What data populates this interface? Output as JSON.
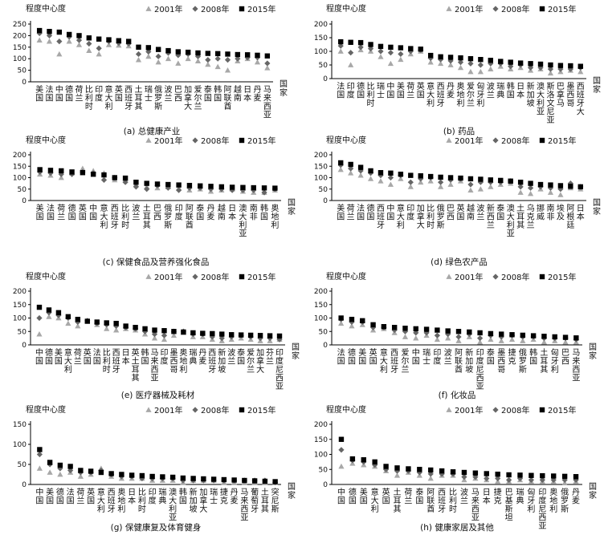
{
  "chart_data": [
    {
      "type": "scatter",
      "title": "(a) 总健康产业",
      "ylabel": "程度中心度",
      "xlabel": "国家",
      "ylim": [
        0,
        250
      ],
      "yticks": [
        0,
        50,
        100,
        150,
        200,
        250
      ],
      "legend": [
        "2001年",
        "2008年",
        "2015年"
      ],
      "categories": [
        "美国",
        "法国",
        "中国",
        "德国",
        "荷兰",
        "比利时",
        "印度",
        "意大利",
        "英国",
        "西班牙",
        "土耳其",
        "瑞士",
        "俄罗斯",
        "波兰",
        "巴西",
        "加拿大",
        "爱尔兰",
        "泰国",
        "韩国",
        "阿联酋",
        "越南",
        "日本",
        "丹麦",
        "马来西亚"
      ],
      "series": [
        {
          "name": "2001年",
          "values": [
            180,
            175,
            120,
            175,
            160,
            135,
            120,
            160,
            158,
            155,
            95,
            110,
            85,
            100,
            80,
            100,
            90,
            75,
            65,
            50,
            90,
            100,
            85,
            60
          ]
        },
        {
          "name": "2008年",
          "values": [
            210,
            200,
            175,
            195,
            180,
            165,
            145,
            175,
            168,
            165,
            120,
            130,
            110,
            125,
            115,
            120,
            110,
            95,
            100,
            95,
            100,
            105,
            105,
            80
          ]
        },
        {
          "name": "2015年",
          "values": [
            222,
            218,
            215,
            205,
            200,
            190,
            185,
            182,
            178,
            175,
            150,
            148,
            140,
            135,
            130,
            128,
            125,
            123,
            122,
            120,
            118,
            117,
            115,
            112
          ]
        }
      ]
    },
    {
      "type": "scatter",
      "title": "(b) 药品",
      "ylabel": "程度中心度",
      "xlabel": "国家",
      "ylim": [
        0,
        200
      ],
      "yticks": [
        0,
        50,
        100,
        150,
        200
      ],
      "legend": [
        "2001年",
        "2008年",
        "2015年"
      ],
      "categories": [
        "法国",
        "印度",
        "德国",
        "比利时",
        "瑞士",
        "中国",
        "美国",
        "荷兰",
        "英国",
        "意大利",
        "西班牙",
        "丹麦",
        "奥地利",
        "爱尔兰",
        "匈牙利",
        "波兰",
        "瑞典",
        "韩国",
        "日本",
        "新加坡",
        "澳大利亚",
        "斯洛文尼亚",
        "巴拿马",
        "墨西哥",
        "西班牙大"
      ],
      "series": [
        {
          "name": "2001年",
          "values": [
            100,
            50,
            105,
            100,
            80,
            55,
            70,
            90,
            100,
            60,
            55,
            50,
            40,
            25,
            25,
            35,
            45,
            35,
            40,
            30,
            35,
            20,
            25,
            30,
            25
          ]
        },
        {
          "name": "2008年",
          "values": [
            120,
            95,
            115,
            110,
            100,
            95,
            90,
            100,
            105,
            75,
            70,
            65,
            60,
            55,
            50,
            55,
            55,
            45,
            50,
            40,
            40,
            35,
            35,
            35,
            40
          ]
        },
        {
          "name": "2015年",
          "values": [
            135,
            133,
            132,
            125,
            118,
            115,
            113,
            110,
            108,
            85,
            80,
            78,
            76,
            73,
            70,
            67,
            63,
            60,
            57,
            55,
            53,
            50,
            48,
            47,
            45
          ]
        }
      ]
    },
    {
      "type": "scatter",
      "title": "(c) 保健食品及营养强化食品",
      "ylabel": "程度中心度",
      "xlabel": "国家",
      "ylim": [
        0,
        200
      ],
      "yticks": [
        0,
        50,
        100,
        150,
        200
      ],
      "legend": [
        "2001年",
        "2008年",
        "2015年"
      ],
      "categories": [
        "美国",
        "法国",
        "荷兰",
        "德国",
        "英国",
        "中国",
        "意大利",
        "西班牙",
        "比利时",
        "波兰",
        "土耳其",
        "巴西",
        "俄罗斯",
        "印度",
        "阿联酋",
        "泰国",
        "丹麦",
        "越南",
        "日本",
        "澳大利亚",
        "南非",
        "韩国",
        "奥地利"
      ],
      "series": [
        {
          "name": "2001年",
          "values": [
            115,
            110,
            100,
            120,
            140,
            130,
            120,
            90,
            95,
            70,
            60,
            55,
            60,
            55,
            45,
            50,
            40,
            45,
            50,
            40,
            35,
            35,
            45
          ]
        },
        {
          "name": "2008年",
          "values": [
            125,
            120,
            115,
            115,
            125,
            120,
            90,
            100,
            80,
            60,
            50,
            65,
            55,
            45,
            55,
            55,
            50,
            50,
            45,
            45,
            45,
            35,
            50
          ]
        },
        {
          "name": "2015年",
          "values": [
            135,
            132,
            130,
            125,
            122,
            115,
            112,
            100,
            98,
            80,
            75,
            72,
            70,
            68,
            66,
            64,
            62,
            60,
            58,
            57,
            56,
            55,
            54
          ]
        }
      ]
    },
    {
      "type": "scatter",
      "title": "(d) 绿色农产品",
      "ylabel": "程度中心度",
      "xlabel": "国家",
      "ylim": [
        0,
        200
      ],
      "yticks": [
        0,
        50,
        100,
        150,
        200
      ],
      "legend": [
        "2001年",
        "2008年",
        "2015年"
      ],
      "categories": [
        "美国",
        "荷兰",
        "法国",
        "德国",
        "西班牙",
        "中国",
        "意大利",
        "印度",
        "加拿大",
        "比利时",
        "俄罗斯",
        "巴西",
        "英国",
        "越南",
        "波兰",
        "新西兰",
        "泰国",
        "澳大利亚",
        "土耳其",
        "乌克兰",
        "挪威",
        "南非",
        "埃及",
        "阿根廷",
        "日本"
      ],
      "series": [
        {
          "name": "2001年",
          "values": [
            135,
            120,
            110,
            95,
            85,
            70,
            95,
            60,
            80,
            85,
            60,
            70,
            85,
            45,
            50,
            60,
            70,
            75,
            35,
            30,
            50,
            35,
            25,
            55,
            50
          ]
        },
        {
          "name": "2008年",
          "values": [
            155,
            140,
            130,
            120,
            110,
            100,
            110,
            80,
            95,
            100,
            80,
            90,
            95,
            70,
            80,
            80,
            80,
            85,
            60,
            55,
            60,
            55,
            50,
            75,
            60
          ]
        },
        {
          "name": "2015年",
          "values": [
            165,
            158,
            145,
            130,
            122,
            120,
            115,
            110,
            108,
            105,
            102,
            100,
            98,
            95,
            93,
            90,
            88,
            85,
            80,
            75,
            70,
            68,
            65,
            62,
            60
          ]
        }
      ]
    },
    {
      "type": "scatter",
      "title": "(e) 医疗器械及耗材",
      "ylabel": "程度中心度",
      "xlabel": "国家",
      "ylim": [
        0,
        200
      ],
      "yticks": [
        0,
        50,
        100,
        150,
        200
      ],
      "legend": [
        "2001年",
        "2008年",
        "2015年"
      ],
      "categories": [
        "中国",
        "德国",
        "美国",
        "意大利",
        "荷兰",
        "英国",
        "法国",
        "比利时",
        "西班牙",
        "日本",
        "英土耳其",
        "韩国",
        "马来西亚",
        "印度",
        "墨西哥",
        "奥地利",
        "瑞典",
        "丹麦",
        "西班牙",
        "新加坡",
        "波兰",
        "泰国",
        "爱尔兰",
        "加拿大",
        "芬兰",
        "印度尼西亚"
      ],
      "series": [
        {
          "name": "2001年",
          "values": [
            40,
            105,
            100,
            80,
            70,
            90,
            75,
            60,
            55,
            60,
            55,
            40,
            25,
            20,
            35,
            45,
            30,
            30,
            20,
            15,
            20,
            25,
            20,
            15,
            15,
            20
          ]
        },
        {
          "name": "2008年",
          "values": [
            100,
            120,
            110,
            100,
            85,
            90,
            80,
            75,
            70,
            65,
            60,
            50,
            40,
            35,
            50,
            50,
            40,
            40,
            30,
            25,
            30,
            35,
            30,
            25,
            25,
            20
          ]
        },
        {
          "name": "2015年",
          "values": [
            140,
            130,
            120,
            105,
            95,
            88,
            85,
            82,
            80,
            70,
            65,
            60,
            55,
            53,
            50,
            48,
            45,
            43,
            42,
            40,
            38,
            37,
            36,
            35,
            34,
            33
          ]
        }
      ]
    },
    {
      "type": "scatter",
      "title": "(f) 化妆品",
      "ylabel": "程度中心度",
      "xlabel": "国家",
      "ylim": [
        0,
        200
      ],
      "yticks": [
        0,
        50,
        100,
        150,
        200
      ],
      "legend": [
        "2001年",
        "2008年",
        "2015年"
      ],
      "categories": [
        "法国",
        "德国",
        "美国",
        "英国",
        "意大利",
        "西班牙",
        "爱尔兰",
        "中国",
        "瑞士",
        "印度",
        "波兰",
        "阿联酋",
        "新加坡",
        "印度尼西亚",
        "泰国",
        "墨西哥",
        "捷克",
        "俄罗斯",
        "韩国",
        "土耳其",
        "匈牙利",
        "巴西",
        "马来西亚"
      ],
      "series": [
        {
          "name": "2001年",
          "values": [
            80,
            70,
            75,
            55,
            60,
            45,
            30,
            25,
            35,
            20,
            25,
            15,
            30,
            10,
            20,
            15,
            20,
            15,
            20,
            10,
            15,
            10,
            10
          ]
        },
        {
          "name": "2008年",
          "values": [
            95,
            85,
            85,
            65,
            65,
            55,
            50,
            45,
            45,
            35,
            40,
            30,
            40,
            25,
            35,
            30,
            35,
            30,
            30,
            25,
            25,
            25,
            20
          ]
        },
        {
          "name": "2015年",
          "values": [
            100,
            95,
            90,
            75,
            68,
            65,
            62,
            60,
            58,
            55,
            52,
            50,
            48,
            45,
            42,
            40,
            38,
            36,
            34,
            32,
            30,
            28,
            26
          ]
        }
      ]
    },
    {
      "type": "scatter",
      "title": "(g) 保健康复及体育健身",
      "ylabel": "程度中心度",
      "xlabel": "国家",
      "ylim": [
        0,
        150
      ],
      "yticks": [
        0,
        50,
        100,
        150
      ],
      "legend": [
        "2001年",
        "2008年",
        "2015年"
      ],
      "categories": [
        "中国",
        "美国",
        "德国",
        "法国",
        "荷兰",
        "英国",
        "意大利",
        "西班牙",
        "奥地利",
        "日本",
        "比利时",
        "印度",
        "瑞典",
        "澳大利亚",
        "韩国",
        "新加坡",
        "加拿大",
        "瑞士",
        "捷克",
        "丹麦",
        "马来西亚",
        "葡萄牙",
        "土耳其",
        "突尼斯"
      ],
      "series": [
        {
          "name": "2001年",
          "values": [
            40,
            30,
            25,
            30,
            20,
            25,
            40,
            20,
            15,
            15,
            15,
            10,
            10,
            10,
            5,
            10,
            10,
            10,
            5,
            5,
            5,
            5,
            5,
            5
          ]
        },
        {
          "name": "2008年",
          "values": [
            75,
            50,
            40,
            35,
            30,
            30,
            35,
            25,
            20,
            20,
            15,
            15,
            15,
            15,
            10,
            10,
            10,
            10,
            10,
            10,
            10,
            10,
            10,
            5
          ]
        },
        {
          "name": "2015年",
          "values": [
            87,
            55,
            48,
            45,
            35,
            33,
            30,
            27,
            25,
            23,
            22,
            20,
            19,
            18,
            16,
            15,
            14,
            13,
            12,
            11,
            10,
            9,
            8,
            7
          ]
        }
      ]
    },
    {
      "type": "scatter",
      "title": "(h) 健康家居及其他",
      "ylabel": "程度中心度",
      "xlabel": "国家",
      "ylim": [
        0,
        200
      ],
      "yticks": [
        0,
        50,
        100,
        150,
        200
      ],
      "legend": [
        "2001年",
        "2008年",
        "2015年"
      ],
      "categories": [
        "中国",
        "德国",
        "美国",
        "意大利",
        "英国",
        "土耳其",
        "荷兰",
        "泰国",
        "阿联酋",
        "西班牙",
        "比利时",
        "波兰",
        "马来西亚",
        "日本",
        "捷克",
        "巴基斯坦",
        "瑞典",
        "匈牙利",
        "印度尼西亚",
        "奥地利",
        "俄罗斯",
        "丹麦"
      ],
      "series": [
        {
          "name": "2001年",
          "values": [
            60,
            70,
            65,
            60,
            45,
            30,
            40,
            30,
            20,
            30,
            30,
            15,
            20,
            15,
            10,
            10,
            15,
            10,
            10,
            10,
            5,
            10
          ]
        },
        {
          "name": "2008年",
          "values": [
            115,
            80,
            75,
            65,
            50,
            45,
            45,
            40,
            35,
            35,
            35,
            25,
            25,
            20,
            20,
            15,
            20,
            15,
            15,
            15,
            15,
            15
          ]
        },
        {
          "name": "2015年",
          "values": [
            150,
            85,
            82,
            75,
            60,
            55,
            52,
            50,
            48,
            45,
            42,
            40,
            38,
            36,
            34,
            32,
            31,
            30,
            29,
            28,
            27,
            26
          ]
        }
      ]
    }
  ]
}
